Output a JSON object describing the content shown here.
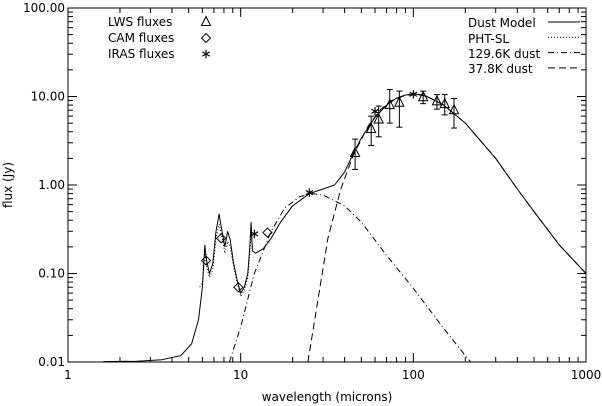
{
  "chart_data": {
    "type": "scatter",
    "xlabel": "wavelength (microns)",
    "ylabel": "flux (Jy)",
    "x_scale": "log",
    "y_scale": "log",
    "xlim": [
      1,
      1000
    ],
    "ylim": [
      0.01,
      100
    ],
    "grid": false,
    "x_ticks": [
      {
        "value": 1,
        "label": "1"
      },
      {
        "value": 10,
        "label": "10"
      },
      {
        "value": 100,
        "label": "100"
      },
      {
        "value": 1000,
        "label": "1000"
      }
    ],
    "y_ticks": [
      {
        "value": 0.01,
        "label": "0.01"
      },
      {
        "value": 0.1,
        "label": "0.10"
      },
      {
        "value": 1,
        "label": "1.00"
      },
      {
        "value": 10,
        "label": "10.00"
      },
      {
        "value": 100,
        "label": "100.00"
      }
    ],
    "legend_left": [
      {
        "label": "LWS fluxes",
        "marker": "triangle"
      },
      {
        "label": "CAM fluxes",
        "marker": "diamond"
      },
      {
        "label": "IRAS fluxes",
        "marker": "asterisk"
      }
    ],
    "legend_right": [
      {
        "label": "Dust Model",
        "style": "solid"
      },
      {
        "label": "PHT-SL",
        "style": "dotted"
      },
      {
        "label": "129.6K dust",
        "style": "dashdot"
      },
      {
        "label": "37.8K dust",
        "style": "dashed"
      }
    ],
    "series": [
      {
        "name": "LWS fluxes",
        "marker": "triangle",
        "points": [
          {
            "x": 46,
            "y": 2.3,
            "err_lo": 1.5,
            "err_hi": 3.3
          },
          {
            "x": 57,
            "y": 4.3,
            "err_lo": 2.8,
            "err_hi": 6.0
          },
          {
            "x": 63,
            "y": 5.5,
            "err_lo": 3.5,
            "err_hi": 7.8
          },
          {
            "x": 73,
            "y": 8.0,
            "err_lo": 5.0,
            "err_hi": 12.0
          },
          {
            "x": 83,
            "y": 8.5,
            "err_lo": 4.5,
            "err_hi": 11.5
          },
          {
            "x": 114,
            "y": 9.8,
            "err_lo": 8.3,
            "err_hi": 11.5
          },
          {
            "x": 137,
            "y": 8.8,
            "err_lo": 7.2,
            "err_hi": 10.5
          },
          {
            "x": 152,
            "y": 8.2,
            "err_lo": 6.2,
            "err_hi": 10.5
          },
          {
            "x": 172,
            "y": 7.0,
            "err_lo": 4.4,
            "err_hi": 9.5
          }
        ]
      },
      {
        "name": "CAM fluxes",
        "marker": "diamond",
        "points": [
          {
            "x": 6.3,
            "y": 0.14
          },
          {
            "x": 7.7,
            "y": 0.25
          },
          {
            "x": 9.7,
            "y": 0.07
          },
          {
            "x": 14.3,
            "y": 0.29
          }
        ]
      },
      {
        "name": "IRAS fluxes",
        "marker": "asterisk",
        "points": [
          {
            "x": 12,
            "y": 0.28
          },
          {
            "x": 25,
            "y": 0.82
          },
          {
            "x": 60,
            "y": 6.8
          },
          {
            "x": 100,
            "y": 10.6
          }
        ]
      }
    ],
    "curves": [
      {
        "name": "Dust Model",
        "style": "solid",
        "points": [
          [
            1.6,
            0.0101
          ],
          [
            2.5,
            0.0102
          ],
          [
            3.5,
            0.0106
          ],
          [
            4.5,
            0.0118
          ],
          [
            5.2,
            0.016
          ],
          [
            5.7,
            0.03
          ],
          [
            6.0,
            0.07
          ],
          [
            6.2,
            0.21
          ],
          [
            6.35,
            0.14
          ],
          [
            6.6,
            0.1
          ],
          [
            6.9,
            0.13
          ],
          [
            7.2,
            0.3
          ],
          [
            7.5,
            0.47
          ],
          [
            7.8,
            0.3
          ],
          [
            8.1,
            0.2
          ],
          [
            8.4,
            0.3
          ],
          [
            8.7,
            0.24
          ],
          [
            9.1,
            0.13
          ],
          [
            9.6,
            0.08
          ],
          [
            10.0,
            0.06
          ],
          [
            10.5,
            0.07
          ],
          [
            11.0,
            0.1
          ],
          [
            11.3,
            0.2
          ],
          [
            11.5,
            0.38
          ],
          [
            11.7,
            0.18
          ],
          [
            12.2,
            0.17
          ],
          [
            13.5,
            0.19
          ],
          [
            15.0,
            0.25
          ],
          [
            17.0,
            0.38
          ],
          [
            20.0,
            0.58
          ],
          [
            25.0,
            0.8
          ],
          [
            30.0,
            0.9
          ],
          [
            35.0,
            1.0
          ],
          [
            40.0,
            1.4
          ],
          [
            45.0,
            2.3
          ],
          [
            50.0,
            3.4
          ],
          [
            60.0,
            5.8
          ],
          [
            70.0,
            8.0
          ],
          [
            80.0,
            9.6
          ],
          [
            90.0,
            10.4
          ],
          [
            100.0,
            10.7
          ],
          [
            110.0,
            10.5
          ],
          [
            120.0,
            10.0
          ],
          [
            150.0,
            8.0
          ],
          [
            200.0,
            5.0
          ],
          [
            300.0,
            2.0
          ],
          [
            400.0,
            0.9
          ],
          [
            500.0,
            0.5
          ],
          [
            700.0,
            0.21
          ],
          [
            1000.0,
            0.1
          ]
        ]
      },
      {
        "name": "PHT-SL",
        "style": "dotted",
        "points": [
          [
            5.8,
            0.07
          ],
          [
            6.0,
            0.08
          ],
          [
            6.2,
            0.17
          ],
          [
            6.35,
            0.12
          ],
          [
            6.6,
            0.09
          ],
          [
            6.9,
            0.11
          ],
          [
            7.2,
            0.25
          ],
          [
            7.5,
            0.36
          ],
          [
            7.8,
            0.26
          ],
          [
            8.1,
            0.17
          ],
          [
            8.4,
            0.23
          ],
          [
            8.7,
            0.2
          ],
          [
            9.1,
            0.12
          ],
          [
            9.6,
            0.075
          ],
          [
            10.0,
            0.055
          ],
          [
            10.5,
            0.065
          ],
          [
            11.0,
            0.09
          ],
          [
            11.3,
            0.17
          ],
          [
            11.5,
            0.3
          ],
          [
            11.7,
            0.2
          ],
          [
            12.0,
            0.19
          ]
        ]
      },
      {
        "name": "129.6K dust",
        "style": "dashdot",
        "points": [
          [
            8.6,
            0.01
          ],
          [
            10.0,
            0.025
          ],
          [
            12.0,
            0.1
          ],
          [
            15.0,
            0.3
          ],
          [
            18.0,
            0.55
          ],
          [
            22.0,
            0.74
          ],
          [
            26.0,
            0.8
          ],
          [
            30.0,
            0.77
          ],
          [
            40.0,
            0.58
          ],
          [
            50.0,
            0.38
          ],
          [
            70.0,
            0.16
          ],
          [
            100.0,
            0.068
          ],
          [
            150.0,
            0.024
          ],
          [
            200.0,
            0.0118
          ],
          [
            215.0,
            0.01
          ]
        ]
      },
      {
        "name": "37.8K dust",
        "style": "dashed",
        "points": [
          [
            24.5,
            0.01
          ],
          [
            28.0,
            0.05
          ],
          [
            32.0,
            0.25
          ],
          [
            38.0,
            0.9
          ],
          [
            45.0,
            2.2
          ],
          [
            55.0,
            4.7
          ],
          [
            65.0,
            7.2
          ],
          [
            75.0,
            9.0
          ],
          [
            90.0,
            10.3
          ],
          [
            100.0,
            10.6
          ],
          [
            110.0,
            10.4
          ],
          [
            120.0,
            10.0
          ],
          [
            150.0,
            8.0
          ],
          [
            200.0,
            5.0
          ],
          [
            300.0,
            2.0
          ],
          [
            400.0,
            0.9
          ],
          [
            500.0,
            0.5
          ],
          [
            700.0,
            0.21
          ],
          [
            1000.0,
            0.1
          ]
        ]
      }
    ]
  }
}
